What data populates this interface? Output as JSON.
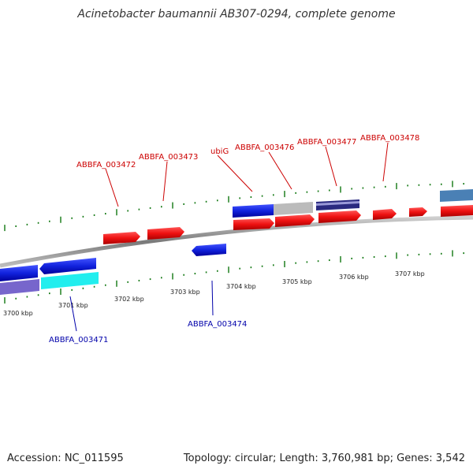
{
  "title": "Acinetobacter baumannii AB307-0294, complete genome",
  "footer": {
    "accession": "Accession: NC_011595",
    "topology": "Topology: circular; Length: 3,760,981 bp; Genes: 3,542"
  },
  "colors": {
    "forward_gene": "#ee1111",
    "reverse_gene": "#1122dd",
    "backbone": "#888888",
    "tick": "#117711",
    "label_forward": "#cc0000",
    "label_reverse": "#0000aa",
    "cyan_gene": "#22eeee",
    "purple_gene": "#7766cc",
    "grey_gene": "#bbbbbb",
    "steel_gene": "#4a80b5"
  },
  "scale": {
    "kbp_labels": [
      "3700 kbp",
      "3701 kbp",
      "3702 kbp",
      "3703 kbp",
      "3704 kbp",
      "3705 kbp",
      "3706 kbp",
      "3707 kbp"
    ]
  },
  "gene_labels": {
    "forward": [
      "ABBFA_003472",
      "ABBFA_003473",
      "ubiG",
      "ABBFA_003476",
      "ABBFA_003477",
      "ABBFA_003478"
    ],
    "reverse": [
      "ABBFA_003471",
      "ABBFA_003474"
    ]
  }
}
